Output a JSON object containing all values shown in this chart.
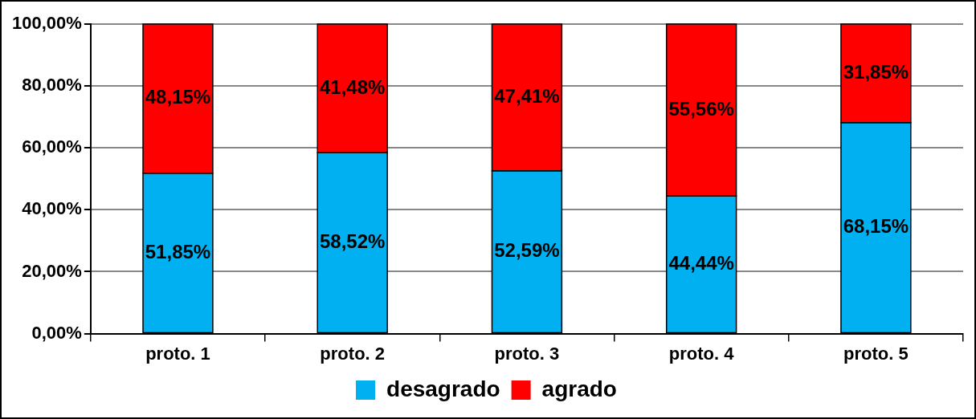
{
  "chart_data": {
    "type": "bar",
    "stacked": true,
    "categories": [
      "proto. 1",
      "proto. 2",
      "proto. 3",
      "proto. 4",
      "proto. 5"
    ],
    "series": [
      {
        "name": "desagrado",
        "color": "#00b0f0",
        "values": [
          51.85,
          58.52,
          52.59,
          44.44,
          68.15
        ],
        "value_labels": [
          "51,85%",
          "58,52%",
          "52,59%",
          "44,44%",
          "68,15%"
        ]
      },
      {
        "name": "agrado",
        "color": "#ff0000",
        "values": [
          48.15,
          41.48,
          47.41,
          55.56,
          31.85
        ],
        "value_labels": [
          "48,15%",
          "41,48%",
          "47,41%",
          "55,56%",
          "31,85%"
        ]
      }
    ],
    "ylim": [
      0,
      100
    ],
    "yticks": [
      {
        "value": 0,
        "label": "0,00%"
      },
      {
        "value": 20,
        "label": "20,00%"
      },
      {
        "value": 40,
        "label": "40,00%"
      },
      {
        "value": 60,
        "label": "60,00%"
      },
      {
        "value": 80,
        "label": "80,00%"
      },
      {
        "value": 100,
        "label": "100,00%"
      }
    ],
    "grid": "y",
    "legend": "bottom"
  }
}
